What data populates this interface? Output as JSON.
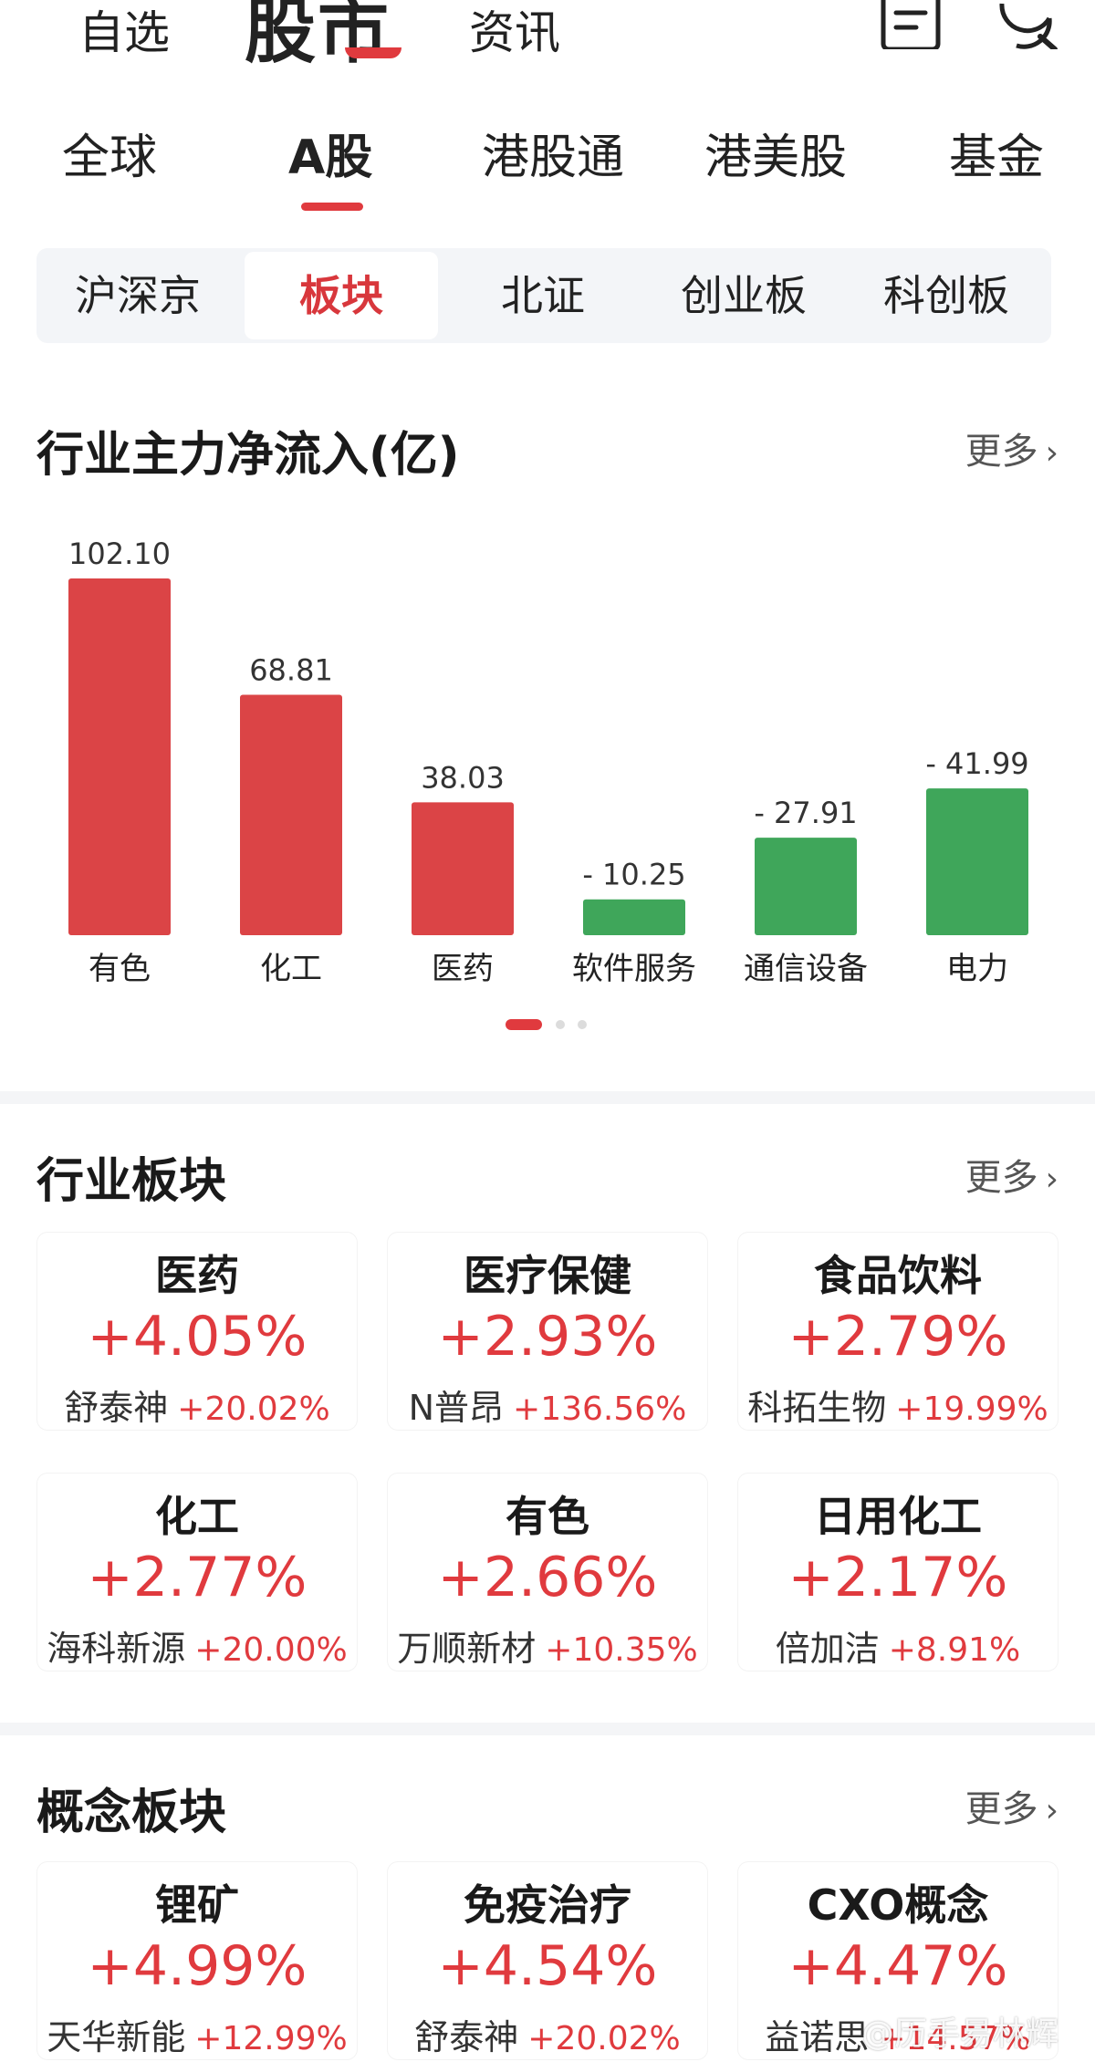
{
  "top_nav": {
    "tabs": [
      "自选",
      "股市",
      "资讯"
    ],
    "active": "股市",
    "icons": [
      "document-icon",
      "search-icon"
    ]
  },
  "market_tabs": {
    "items": [
      "全球",
      "A股",
      "港股通",
      "港美股",
      "基金"
    ],
    "active": "A股"
  },
  "segments": {
    "items": [
      "沪深京",
      "板块",
      "北证",
      "创业板",
      "科创板"
    ],
    "active": "板块"
  },
  "flow_section": {
    "title": "行业主力净流入(亿)",
    "more": "更多"
  },
  "chart_data": {
    "type": "bar",
    "categories": [
      "有色",
      "化工",
      "医药",
      "软件服务",
      "通信设备",
      "电力"
    ],
    "values": [
      102.1,
      68.81,
      38.03,
      -10.25,
      -27.91,
      -41.99
    ],
    "value_labels": [
      "102.10",
      "68.81",
      "38.03",
      "- 10.25",
      "- 27.91",
      "- 41.99"
    ],
    "colors": {
      "positive": "#db4446",
      "negative": "#3fa65a"
    },
    "pagination": {
      "pages": 3,
      "active": 0
    }
  },
  "industry_section": {
    "title": "行业板块",
    "more": "更多",
    "cards": [
      {
        "name": "医药",
        "pct": "+4.05%",
        "stock": "舒泰神",
        "stock_pct": "+20.02%"
      },
      {
        "name": "医疗保健",
        "pct": "+2.93%",
        "stock": "N普昂",
        "stock_pct": "+136.56%"
      },
      {
        "name": "食品饮料",
        "pct": "+2.79%",
        "stock": "科拓生物",
        "stock_pct": "+19.99%"
      },
      {
        "name": "化工",
        "pct": "+2.77%",
        "stock": "海科新源",
        "stock_pct": "+20.00%"
      },
      {
        "name": "有色",
        "pct": "+2.66%",
        "stock": "万顺新材",
        "stock_pct": "+10.35%"
      },
      {
        "name": "日用化工",
        "pct": "+2.17%",
        "stock": "倍加洁",
        "stock_pct": "+8.91%"
      }
    ]
  },
  "concept_section": {
    "title": "概念板块",
    "more": "更多",
    "cards": [
      {
        "name": "锂矿",
        "pct": "+4.99%",
        "stock": "天华新能",
        "stock_pct": "+12.99%"
      },
      {
        "name": "免疫治疗",
        "pct": "+4.54%",
        "stock": "舒泰神",
        "stock_pct": "+20.02%"
      },
      {
        "name": "CXO概念",
        "pct": "+4.47%",
        "stock": "益诺思",
        "stock_pct": "+14.57%"
      }
    ]
  },
  "accent_color": "#e03a3e",
  "watermark": "@历手易林辉"
}
